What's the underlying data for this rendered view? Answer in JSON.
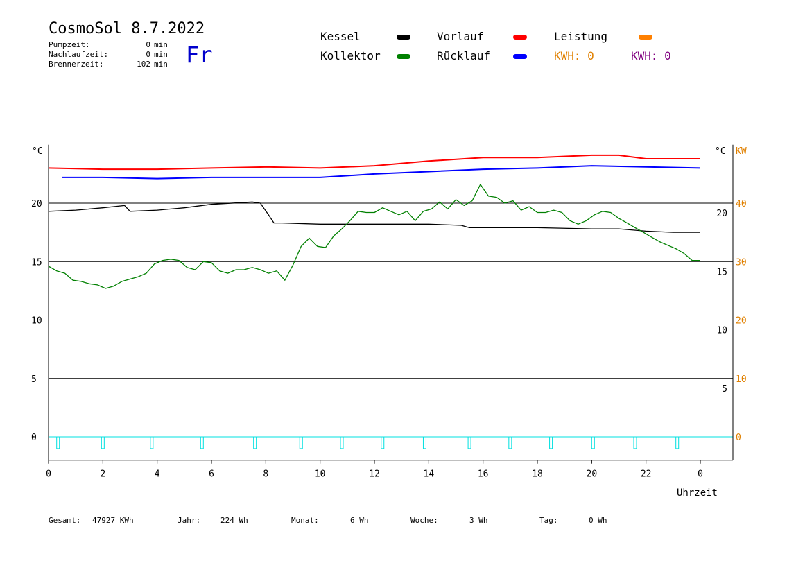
{
  "header": {
    "title": "CosmoSol 8.7.2022",
    "weekday": "Fr",
    "stats": [
      {
        "label": "Pumpzeit:",
        "value": "0",
        "unit": "min"
      },
      {
        "label": "Nachlaufzeit:",
        "value": "0",
        "unit": "min"
      },
      {
        "label": "Brennerzeit:",
        "value": "102",
        "unit": "min"
      }
    ]
  },
  "legend": {
    "kessel": {
      "label": "Kessel",
      "color": "#000000"
    },
    "kollektor": {
      "label": "Kollektor",
      "color": "#008000"
    },
    "vorlauf": {
      "label": "Vorlauf",
      "color": "#ff0000"
    },
    "ruecklauf": {
      "label": "Rücklauf",
      "color": "#0000ff"
    },
    "leistung": {
      "label": "Leistung",
      "color": "#ff8000"
    },
    "kwh1": {
      "label": "KWH: 0",
      "color": "#e08000"
    },
    "kwh2": {
      "label": "KWH: 0",
      "color": "#800080"
    }
  },
  "footer": {
    "gesamt_label": "Gesamt:",
    "gesamt_value": "47927 KWh",
    "jahr_label": "Jahr:",
    "jahr_value": "224 Wh",
    "monat_label": "Monat:",
    "monat_value": "6 Wh",
    "woche_label": "Woche:",
    "woche_value": "3 Wh",
    "tag_label": "Tag:",
    "tag_value": "0 Wh"
  },
  "chart_data": {
    "type": "line",
    "xlabel": "Uhrzeit",
    "x_ticks": [
      "0",
      "2",
      "4",
      "6",
      "8",
      "10",
      "12",
      "14",
      "16",
      "18",
      "20",
      "22",
      "0"
    ],
    "xlim": [
      0,
      24
    ],
    "y_left_unit": "°C",
    "y_left_ticks": [
      "0",
      "5",
      "10",
      "15",
      "20"
    ],
    "y_right_unit": "°C",
    "y_right_ticks": [
      "5",
      "10",
      "15",
      "20"
    ],
    "y_kw_unit": "KW",
    "y_kw_ticks": [
      "0",
      "10",
      "20",
      "30",
      "40"
    ],
    "ylim": [
      -2,
      25
    ],
    "kw_scale": 2,
    "grid": "horizontal",
    "grid_values": [
      0,
      5,
      10,
      15,
      20
    ],
    "colors": {
      "kessel": "#000000",
      "kollektor": "#008000",
      "vorlauf": "#ff0000",
      "ruecklauf": "#0000ff",
      "pump": "#00e0e0",
      "kw_axis": "#e08000"
    },
    "series": [
      {
        "name": "Vorlauf",
        "key": "vorlauf",
        "x": [
          0,
          2,
          4,
          6,
          8,
          10,
          12,
          14,
          16,
          18,
          20,
          21,
          22,
          24
        ],
        "y": [
          23.0,
          22.9,
          22.9,
          23.0,
          23.1,
          23.0,
          23.2,
          23.6,
          23.9,
          23.9,
          24.1,
          24.1,
          23.8,
          23.8
        ]
      },
      {
        "name": "Rücklauf",
        "key": "ruecklauf",
        "x": [
          0.5,
          2,
          4,
          6,
          8,
          10,
          12,
          14,
          16,
          18,
          20,
          22,
          24
        ],
        "y": [
          22.2,
          22.2,
          22.1,
          22.2,
          22.2,
          22.2,
          22.5,
          22.7,
          22.9,
          23.0,
          23.2,
          23.1,
          23.0
        ]
      },
      {
        "name": "Kessel",
        "key": "kessel",
        "x": [
          0,
          1,
          2,
          2.8,
          3,
          4,
          5,
          6,
          7.5,
          7.8,
          8.1,
          8.3,
          8.6,
          10,
          12,
          14,
          15.2,
          15.5,
          16,
          18,
          20,
          21,
          22,
          23,
          24
        ],
        "y": [
          19.3,
          19.4,
          19.6,
          19.8,
          19.3,
          19.4,
          19.6,
          19.9,
          20.1,
          20.0,
          19.0,
          18.3,
          18.3,
          18.2,
          18.2,
          18.2,
          18.1,
          17.9,
          17.9,
          17.9,
          17.8,
          17.8,
          17.6,
          17.5,
          17.5
        ]
      },
      {
        "name": "Kollektor",
        "key": "kollektor",
        "x": [
          0,
          0.3,
          0.6,
          0.9,
          1.2,
          1.5,
          1.8,
          2.1,
          2.4,
          2.7,
          3.0,
          3.3,
          3.6,
          3.9,
          4.2,
          4.5,
          4.8,
          5.1,
          5.4,
          5.7,
          6.0,
          6.3,
          6.6,
          6.9,
          7.2,
          7.5,
          7.8,
          8.1,
          8.4,
          8.7,
          9.0,
          9.3,
          9.6,
          9.9,
          10.2,
          10.5,
          10.8,
          11.1,
          11.4,
          11.7,
          12.0,
          12.3,
          12.6,
          12.9,
          13.2,
          13.5,
          13.8,
          14.1,
          14.4,
          14.7,
          15.0,
          15.3,
          15.6,
          15.9,
          16.2,
          16.5,
          16.8,
          17.1,
          17.4,
          17.7,
          18.0,
          18.3,
          18.6,
          18.9,
          19.2,
          19.5,
          19.8,
          20.1,
          20.4,
          20.7,
          21.0,
          21.3,
          21.6,
          21.9,
          22.2,
          22.5,
          22.8,
          23.1,
          23.4,
          23.7,
          24.0
        ],
        "y": [
          14.6,
          14.2,
          14.0,
          13.4,
          13.3,
          13.1,
          13.0,
          12.7,
          12.9,
          13.3,
          13.5,
          13.7,
          14.0,
          14.8,
          15.1,
          15.2,
          15.1,
          14.5,
          14.3,
          15.0,
          14.9,
          14.2,
          14.0,
          14.3,
          14.3,
          14.5,
          14.3,
          14.0,
          14.2,
          13.4,
          14.7,
          16.3,
          17.0,
          16.3,
          16.2,
          17.2,
          17.8,
          18.5,
          19.3,
          19.2,
          19.2,
          19.6,
          19.3,
          19.0,
          19.3,
          18.5,
          19.3,
          19.5,
          20.1,
          19.5,
          20.3,
          19.8,
          20.2,
          21.6,
          20.6,
          20.5,
          20.0,
          20.2,
          19.4,
          19.7,
          19.2,
          19.2,
          19.4,
          19.2,
          18.5,
          18.2,
          18.5,
          19.0,
          19.3,
          19.2,
          18.7,
          18.3,
          17.9,
          17.5,
          17.1,
          16.7,
          16.4,
          16.1,
          15.7,
          15.1,
          15.1
        ]
      },
      {
        "name": "Pumpe",
        "key": "pump",
        "pulses": [
          0.35,
          2.0,
          3.8,
          5.65,
          7.6,
          9.3,
          10.8,
          12.3,
          13.85,
          15.5,
          17.0,
          18.5,
          20.05,
          21.6,
          23.15
        ],
        "y_on": 0,
        "y_off": -1
      }
    ]
  }
}
